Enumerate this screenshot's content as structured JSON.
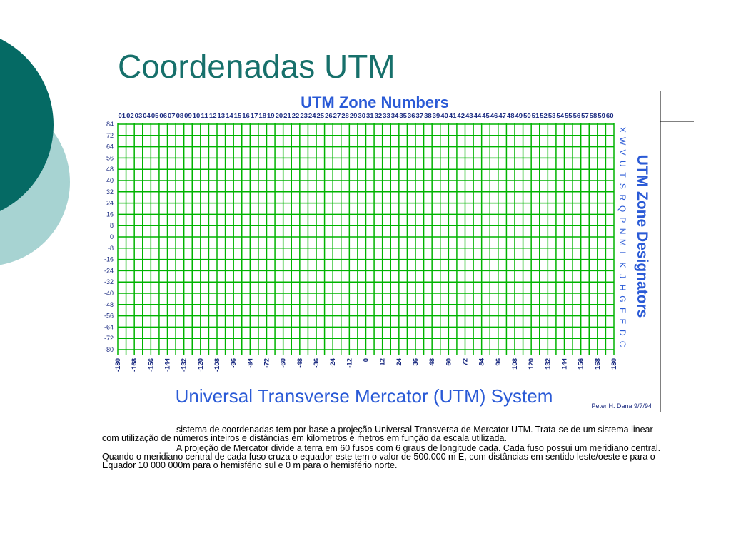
{
  "slide": {
    "title": "Coordenadas UTM",
    "figure": {
      "top_title": "UTM Zone Numbers",
      "zone_numbers": [
        "01",
        "02",
        "03",
        "04",
        "05",
        "06",
        "07",
        "08",
        "09",
        "10",
        "11",
        "12",
        "13",
        "14",
        "15",
        "16",
        "17",
        "18",
        "19",
        "20",
        "21",
        "22",
        "23",
        "24",
        "25",
        "26",
        "27",
        "28",
        "29",
        "30",
        "31",
        "32",
        "33",
        "34",
        "35",
        "36",
        "37",
        "38",
        "39",
        "40",
        "41",
        "42",
        "43",
        "44",
        "45",
        "46",
        "47",
        "48",
        "49",
        "50",
        "51",
        "52",
        "53",
        "54",
        "55",
        "56",
        "57",
        "58",
        "59",
        "60"
      ],
      "latitudes": [
        84,
        72,
        64,
        56,
        48,
        40,
        32,
        24,
        16,
        8,
        0,
        -8,
        -16,
        -24,
        -32,
        -40,
        -48,
        -56,
        -64,
        -72,
        -80
      ],
      "longitudes": [
        -180,
        -168,
        -156,
        -144,
        -132,
        -120,
        -108,
        -96,
        -84,
        -72,
        -60,
        -48,
        -36,
        -24,
        -12,
        0,
        12,
        24,
        36,
        48,
        60,
        72,
        84,
        96,
        108,
        120,
        132,
        144,
        156,
        168,
        180
      ],
      "designators": [
        "C",
        "D",
        "E",
        "F",
        "G",
        "H",
        "J",
        "K",
        "L",
        "M",
        "N",
        "P",
        "Q",
        "R",
        "S",
        "T",
        "U",
        "V",
        "W",
        "X"
      ],
      "side_title": "UTM Zone Designators",
      "bottom_title": "Universal Transverse Mercator (UTM) System",
      "credit": "Peter H. Dana 9/7/94"
    },
    "paragraphs": [
      "sistema de coordenadas tem por base a projeção Universal Transversa de Mercator UTM. Trata-se de um sistema linear com utilização de números inteiros e distâncias em kilometros e metros em função da escala utilizada.",
      "A projeção de Mercator divide a terra em 60 fusos com 6 graus de longitude cada. Cada fuso possui um meridiano central. Quando o meridiano central de cada fuso cruza o equador este tem o valor de 500.000 m E, com distâncias em sentido leste/oeste e para o Equador 10 000 000m para o hemisfério sul e 0 m para o hemisfério norte."
    ]
  }
}
